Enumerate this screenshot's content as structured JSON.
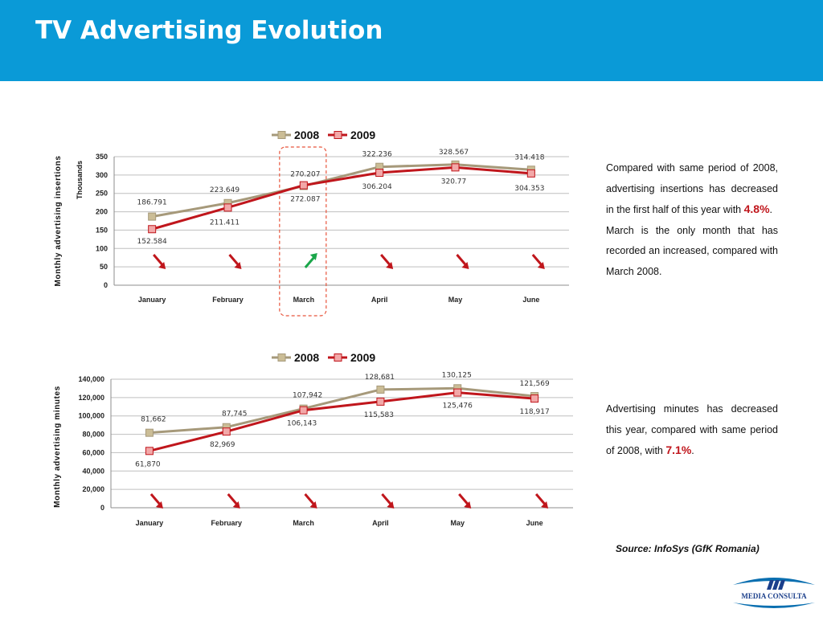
{
  "slide": {
    "title": "TV Advertising Evolution",
    "source": "Source: InfoSys (GfK Romania)"
  },
  "notes": {
    "insertions": {
      "text": "Compared with same period of 2008, advertising insertions has decreased in the first half of this year with ",
      "pct": "4.8%",
      "end": ".",
      "text2": "March is the only month that has recorded an increased, compared with March 2008."
    },
    "minutes": {
      "text": "Advertising minutes has decreased this year, compared with same period of 2008, with ",
      "pct": "7.1%",
      "end": "."
    }
  },
  "logo": {
    "text": "MEDIA CONSULTA"
  },
  "colors": {
    "header": "#0a9ad7",
    "series_2008": "#a6997a",
    "series_2008_marker": "#cbbd96",
    "series_2009": "#c0161c",
    "series_2009_marker": "#f2a8a8",
    "arrow_down": "#c0161c",
    "arrow_up": "#1aa64a",
    "highlight_box": "#e8553c"
  },
  "chart_data": [
    {
      "type": "line",
      "ylabel": "Monthly advertising insertions",
      "unit_label": "Thousands",
      "categories": [
        "January",
        "February",
        "March",
        "April",
        "May",
        "June"
      ],
      "ylim": [
        0,
        350
      ],
      "yticks": [
        "0",
        "50",
        "100",
        "150",
        "200",
        "250",
        "300",
        "350"
      ],
      "grid": true,
      "legend": "top",
      "highlight_category": "March",
      "series": [
        {
          "name": "2008",
          "values": [
            186.791,
            223.649,
            270.207,
            322.236,
            328.567,
            314.418
          ],
          "labels": [
            "186.791",
            "223.649",
            "270.207",
            "322.236",
            "328.567",
            "314.418"
          ]
        },
        {
          "name": "2009",
          "values": [
            152.584,
            211.411,
            272.087,
            306.204,
            320.77,
            304.353
          ],
          "labels": [
            "152.584",
            "211.411",
            "272.087",
            "306.204",
            "320.77",
            "304.353"
          ]
        }
      ],
      "trend_arrows": [
        "down",
        "down",
        "up",
        "down",
        "down",
        "down"
      ]
    },
    {
      "type": "line",
      "ylabel": "Monthly advertising minutes",
      "categories": [
        "January",
        "February",
        "March",
        "April",
        "May",
        "June"
      ],
      "ylim": [
        0,
        140000
      ],
      "yticks": [
        "0",
        "20,000",
        "40,000",
        "60,000",
        "80,000",
        "100,000",
        "120,000",
        "140,000"
      ],
      "grid": true,
      "legend": "top",
      "series": [
        {
          "name": "2008",
          "values": [
            81662,
            87745,
            107942,
            128681,
            130125,
            121569
          ],
          "labels": [
            "81,662",
            "87,745",
            "107,942",
            "128,681",
            "130,125",
            "121,569"
          ]
        },
        {
          "name": "2009",
          "values": [
            61870,
            82969,
            106143,
            115583,
            125476,
            118917
          ],
          "labels": [
            "61,870",
            "82,969",
            "106,143",
            "115,583",
            "125,476",
            "118,917"
          ]
        }
      ],
      "trend_arrows": [
        "down",
        "down",
        "down",
        "down",
        "down",
        "down"
      ]
    }
  ]
}
